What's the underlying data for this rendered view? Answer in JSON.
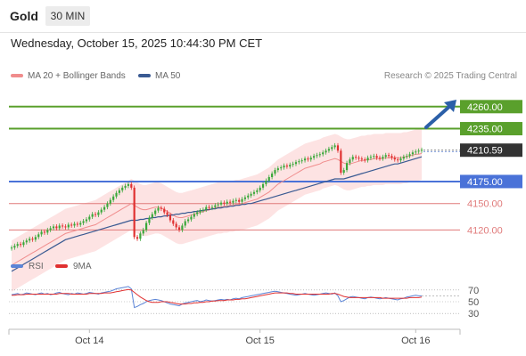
{
  "header": {
    "title": "Gold",
    "timeframe": "30 MIN"
  },
  "datetime": "Wednesday, October 15, 2025 10:44:30 PM CET",
  "legend": {
    "items": [
      {
        "label": "MA 20 + Bollinger Bands",
        "color": "#f08c8c"
      },
      {
        "label": "MA 50",
        "color": "#3a5a92"
      }
    ],
    "credit": "Research © 2025 Trading Central"
  },
  "colors": {
    "resistance": "#5aa02c",
    "support_blue": "#4a72d8",
    "support_red": "#e07a7a",
    "up_candle": "#3aa83a",
    "down_candle": "#e03030",
    "band_fill": "#fde3e3",
    "ma50": "#3a5a92",
    "rsi": "#5b84d6",
    "rsi_ma": "#e03030",
    "arrow": "#2b5fa8"
  },
  "chart_data": [
    {
      "type": "candlestick",
      "ylim": [
        4080,
        4280
      ],
      "x_ticks": [
        "Oct 14",
        "Oct 15",
        "Oct 16"
      ],
      "current_price": "4210.59",
      "levels": [
        {
          "label": "4260.00",
          "value": 4260,
          "style": "resistance"
        },
        {
          "label": "4235.00",
          "value": 4235,
          "style": "resistance"
        },
        {
          "label": "4175.00",
          "value": 4175,
          "style": "support_blue"
        },
        {
          "label": "4150.00",
          "value": 4150,
          "style": "support_red"
        },
        {
          "label": "4120.00",
          "value": 4120,
          "style": "support_red"
        }
      ],
      "close": [
        4100,
        4102,
        4104,
        4103,
        4106,
        4108,
        4110,
        4109,
        4112,
        4115,
        4118,
        4117,
        4120,
        4122,
        4124,
        4122,
        4125,
        4124,
        4123,
        4126,
        4125,
        4127,
        4126,
        4128,
        4130,
        4132,
        4135,
        4138,
        4137,
        4140,
        4143,
        4146,
        4150,
        4154,
        4158,
        4162,
        4165,
        4168,
        4170,
        4172,
        4168,
        4112,
        4110,
        4116,
        4120,
        4128,
        4134,
        4138,
        4142,
        4145,
        4144,
        4140,
        4137,
        4131,
        4127,
        4123,
        4120,
        4125,
        4130,
        4132,
        4135,
        4138,
        4140,
        4142,
        4143,
        4146,
        4145,
        4146,
        4148,
        4149,
        4151,
        4150,
        4152,
        4151,
        4153,
        4154,
        4152,
        4155,
        4157,
        4159,
        4161,
        4163,
        4165,
        4168,
        4172,
        4176,
        4180,
        4184,
        4188,
        4190,
        4191,
        4193,
        4192,
        4194,
        4195,
        4197,
        4198,
        4199,
        4201,
        4200,
        4202,
        4204,
        4205,
        4206,
        4208,
        4210,
        4212,
        4214,
        4216,
        4210,
        4185,
        4188,
        4196,
        4200,
        4203,
        4202,
        4201,
        4200,
        4199,
        4202,
        4203,
        4204,
        4202,
        4201,
        4203,
        4205,
        4204,
        4202,
        4200,
        4199,
        4201,
        4203,
        4204,
        4206,
        4208,
        4209,
        4210,
        4211
      ],
      "ma20": [
        4080,
        4082,
        4084,
        4086,
        4088,
        4090,
        4092,
        4094,
        4096,
        4098,
        4100,
        4102,
        4104,
        4106,
        4108,
        4110,
        4112,
        4114,
        4116,
        4117,
        4118,
        4119,
        4120,
        4121,
        4122,
        4123,
        4124,
        4125,
        4126,
        4128,
        4130,
        4132,
        4134,
        4136,
        4138,
        4140,
        4142,
        4144,
        4146,
        4148,
        4150,
        4148,
        4146,
        4144,
        4143,
        4143,
        4144,
        4145,
        4146,
        4146,
        4145,
        4143,
        4141,
        4139,
        4137,
        4135,
        4134,
        4134,
        4135,
        4136,
        4137,
        4138,
        4139,
        4140,
        4141,
        4142,
        4143,
        4144,
        4145,
        4146,
        4146,
        4147,
        4147,
        4148,
        4148,
        4149,
        4149,
        4150,
        4151,
        4152,
        4153,
        4154,
        4155,
        4157,
        4159,
        4161,
        4163,
        4166,
        4169,
        4172,
        4174,
        4176,
        4178,
        4180,
        4182,
        4184,
        4186,
        4188,
        4190,
        4191,
        4192,
        4193,
        4194,
        4195,
        4197,
        4198,
        4199,
        4200,
        4201,
        4200,
        4198,
        4196,
        4195,
        4195,
        4196,
        4197,
        4198,
        4199,
        4199,
        4200,
        4200,
        4201,
        4201,
        4201,
        4201,
        4202,
        4202,
        4202,
        4202,
        4202,
        4202,
        4203,
        4203,
        4204,
        4205,
        4206,
        4206,
        4207
      ],
      "ma50": [
        4073,
        4075,
        4077,
        4079,
        4081,
        4083,
        4085,
        4087,
        4089,
        4091,
        4093,
        4095,
        4097,
        4099,
        4101,
        4103,
        4105,
        4107,
        4109,
        4110,
        4111,
        4112,
        4113,
        4114,
        4115,
        4116,
        4117,
        4118,
        4119,
        4120,
        4121,
        4122,
        4123,
        4124,
        4125,
        4126,
        4127,
        4128,
        4129,
        4130,
        4131,
        4131,
        4131,
        4132,
        4132,
        4133,
        4133,
        4134,
        4134,
        4135,
        4135,
        4136,
        4136,
        4137,
        4137,
        4138,
        4138,
        4139,
        4139,
        4140,
        4140,
        4141,
        4141,
        4142,
        4142,
        4143,
        4143,
        4144,
        4144,
        4145,
        4145,
        4146,
        4146,
        4147,
        4147,
        4148,
        4148,
        4149,
        4149,
        4150,
        4150,
        4151,
        4152,
        4153,
        4154,
        4155,
        4156,
        4157,
        4158,
        4159,
        4160,
        4161,
        4162,
        4163,
        4164,
        4165,
        4166,
        4167,
        4168,
        4169,
        4170,
        4171,
        4172,
        4173,
        4174,
        4175,
        4176,
        4177,
        4178,
        4178,
        4178,
        4178,
        4179,
        4180,
        4181,
        4182,
        4183,
        4184,
        4185,
        4186,
        4187,
        4188,
        4189,
        4190,
        4191,
        4192,
        4193,
        4194,
        4195,
        4195,
        4196,
        4197,
        4198,
        4199,
        4200,
        4201,
        4202,
        4203
      ]
    },
    {
      "type": "line",
      "name_rsi": "RSI",
      "name_ma": "9MA",
      "ylim": [
        15,
        85
      ],
      "y_ticks": [
        "70",
        "50",
        "30"
      ],
      "rsi": [
        62,
        63,
        64,
        62,
        63,
        65,
        64,
        63,
        62,
        64,
        65,
        63,
        64,
        62,
        63,
        65,
        66,
        64,
        63,
        62,
        64,
        63,
        65,
        64,
        63,
        64,
        66,
        65,
        64,
        63,
        65,
        66,
        67,
        68,
        70,
        72,
        73,
        74,
        75,
        76,
        72,
        40,
        42,
        45,
        47,
        50,
        52,
        53,
        54,
        53,
        52,
        50,
        48,
        46,
        45,
        44,
        43,
        46,
        48,
        49,
        50,
        51,
        52,
        50,
        51,
        53,
        52,
        51,
        52,
        53,
        54,
        53,
        54,
        53,
        55,
        56,
        55,
        57,
        58,
        59,
        60,
        61,
        62,
        63,
        64,
        65,
        66,
        67,
        68,
        67,
        66,
        65,
        64,
        63,
        62,
        61,
        62,
        63,
        64,
        63,
        62,
        61,
        62,
        63,
        64,
        65,
        64,
        63,
        65,
        60,
        50,
        52,
        55,
        58,
        59,
        58,
        57,
        56,
        55,
        57,
        58,
        57,
        56,
        55,
        56,
        57,
        56,
        55,
        54,
        53,
        55,
        56,
        58,
        59,
        60,
        61,
        60,
        60
      ],
      "rsi_ma": [
        61,
        61,
        62,
        62,
        62,
        63,
        63,
        63,
        63,
        63,
        63,
        63,
        63,
        63,
        63,
        63,
        64,
        64,
        64,
        64,
        63,
        63,
        63,
        63,
        63,
        63,
        64,
        64,
        64,
        64,
        64,
        65,
        65,
        65,
        66,
        67,
        68,
        69,
        70,
        71,
        70,
        66,
        62,
        58,
        55,
        52,
        50,
        49,
        49,
        49,
        50,
        50,
        50,
        49,
        48,
        47,
        46,
        46,
        46,
        47,
        47,
        48,
        48,
        49,
        49,
        50,
        50,
        51,
        51,
        52,
        52,
        52,
        53,
        53,
        53,
        54,
        54,
        55,
        55,
        56,
        57,
        58,
        59,
        60,
        61,
        62,
        63,
        64,
        65,
        65,
        65,
        65,
        65,
        64,
        64,
        63,
        63,
        63,
        63,
        63,
        63,
        63,
        63,
        63,
        63,
        63,
        63,
        64,
        64,
        63,
        61,
        59,
        58,
        57,
        57,
        57,
        57,
        57,
        57,
        57,
        57,
        57,
        57,
        57,
        56,
        56,
        56,
        56,
        56,
        56,
        56,
        56,
        56,
        57,
        57,
        57,
        57,
        58
      ]
    }
  ]
}
